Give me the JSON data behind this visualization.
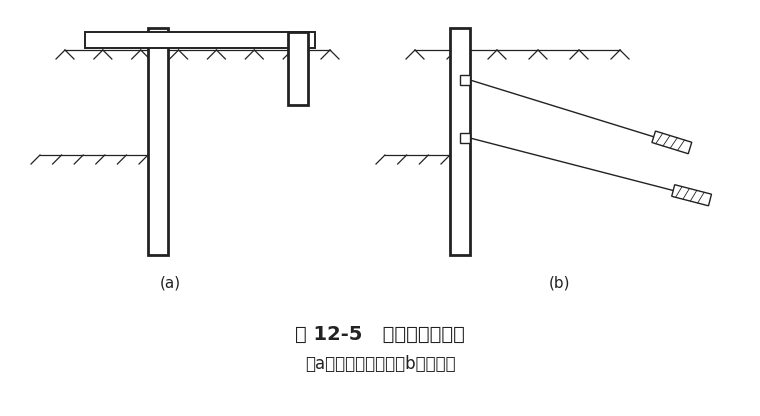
{
  "title": "图 12-5   拉锁式支护结构",
  "subtitle": "（a）地面拉锁式；（b）锁杆式",
  "label_a": "(a)",
  "label_b": "(b)",
  "bg_color": "#ffffff",
  "line_color": "#222222",
  "figsize": [
    7.6,
    4.16
  ],
  "dpi": 100
}
